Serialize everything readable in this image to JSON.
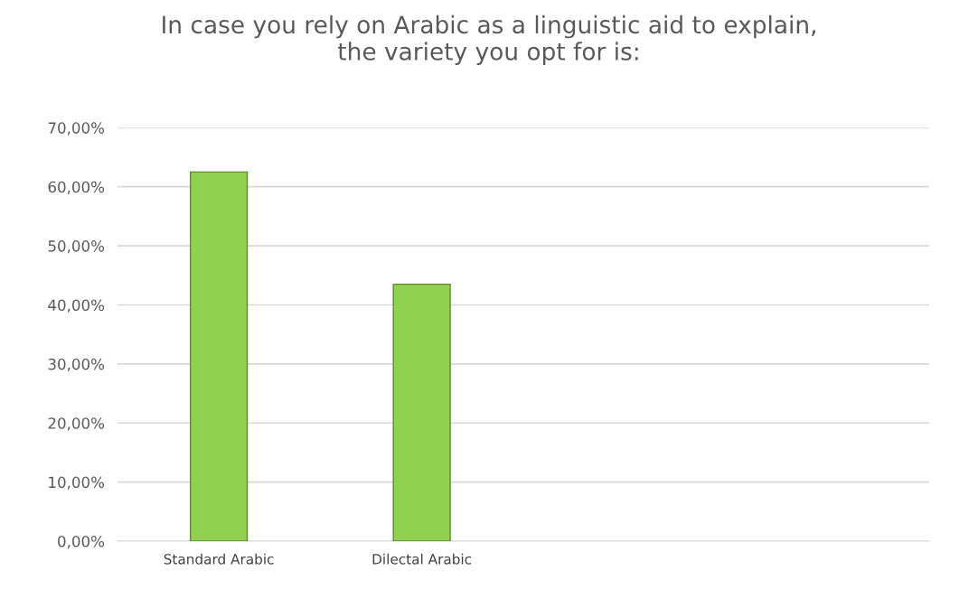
{
  "chart_data": {
    "type": "bar",
    "title": "In case you rely on Arabic as a linguistic aid to explain,\nthe variety you opt for is:",
    "categories": [
      "Standard Arabic",
      "Dilectal Arabic",
      null,
      null
    ],
    "series": [
      {
        "color": "#92d050",
        "values": [
          62.5,
          43.5,
          null,
          null
        ]
      }
    ],
    "ylim": [
      0,
      70
    ],
    "yticks": [
      {
        "value": 0,
        "label": "0,00%"
      },
      {
        "value": 10,
        "label": "10,00%"
      },
      {
        "value": 20,
        "label": "20,00%"
      },
      {
        "value": 30,
        "label": "30,00%"
      },
      {
        "value": 40,
        "label": "40,00%"
      },
      {
        "value": 50,
        "label": "50,00%"
      },
      {
        "value": 60,
        "label": "60,00%"
      },
      {
        "value": 70,
        "label": "70,00%"
      }
    ],
    "grid": "y"
  }
}
